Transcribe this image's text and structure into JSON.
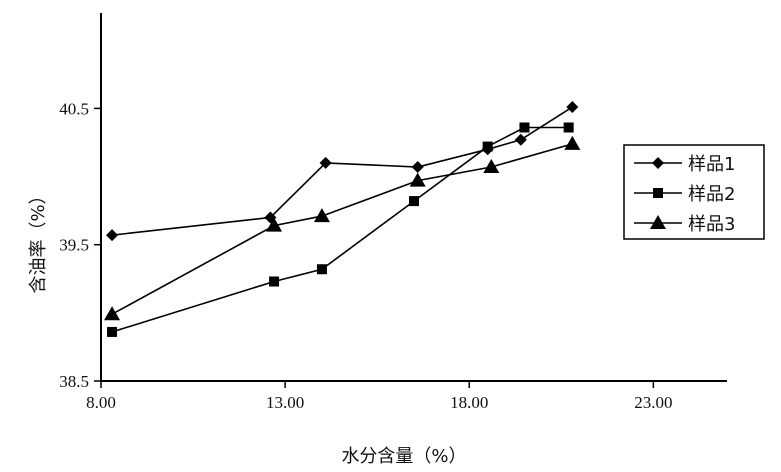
{
  "chart_data": {
    "type": "line",
    "title": "",
    "xlabel": "水分含量（%）",
    "ylabel": "含油率（%）",
    "xlim": [
      8.0,
      25.0
    ],
    "ylim": [
      38.5,
      41.2
    ],
    "x_ticks": [
      8.0,
      13.0,
      18.0,
      23.0
    ],
    "x_tick_labels": [
      "8.00",
      "13.00",
      "18.00",
      "23.00"
    ],
    "y_ticks": [
      38.5,
      39.5,
      40.5
    ],
    "y_tick_labels": [
      "38.5",
      "39.5",
      "40.5"
    ],
    "grid": false,
    "legend_position": "right",
    "series": [
      {
        "name": "样品1",
        "marker": "diamond",
        "points": [
          [
            8.3,
            39.57
          ],
          [
            12.6,
            39.7
          ],
          [
            14.1,
            40.1
          ],
          [
            16.6,
            40.07
          ],
          [
            18.5,
            40.2
          ],
          [
            19.4,
            40.27
          ],
          [
            20.8,
            40.51
          ]
        ]
      },
      {
        "name": "样品2",
        "marker": "square",
        "points": [
          [
            8.3,
            38.86
          ],
          [
            12.7,
            39.23
          ],
          [
            14.0,
            39.32
          ],
          [
            16.5,
            39.82
          ],
          [
            18.5,
            40.22
          ],
          [
            19.5,
            40.36
          ],
          [
            20.7,
            40.36
          ]
        ]
      },
      {
        "name": "样品3",
        "marker": "triangle",
        "points": [
          [
            8.3,
            38.99
          ],
          [
            12.7,
            39.64
          ],
          [
            14.0,
            39.71
          ],
          [
            16.6,
            39.97
          ],
          [
            18.6,
            40.07
          ],
          [
            20.8,
            40.24
          ]
        ]
      }
    ]
  }
}
